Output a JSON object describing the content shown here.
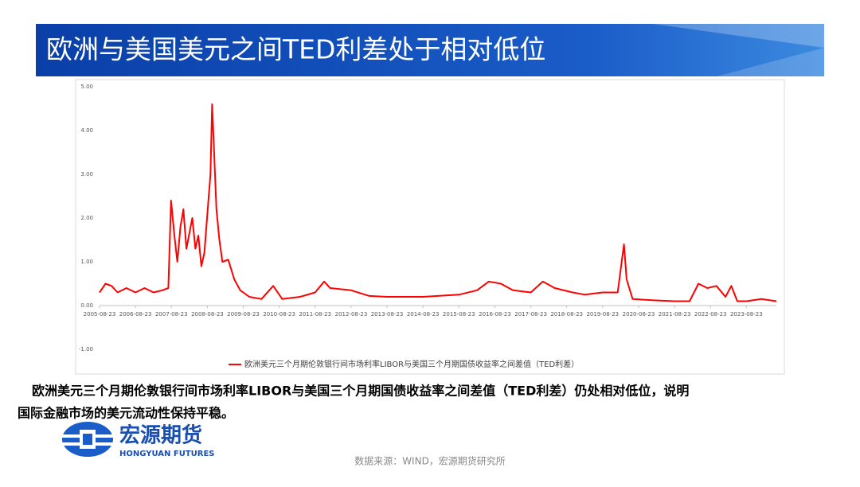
{
  "header": {
    "title": "欧洲与美国美元之间TED利差处于相对低位"
  },
  "chart_data": {
    "type": "line",
    "x": [
      "2005-08-23",
      "2005-10-23",
      "2005-12-23",
      "2006-02-23",
      "2006-05-23",
      "2006-08-23",
      "2006-11-23",
      "2007-02-23",
      "2007-05-23",
      "2007-07-23",
      "2007-08-20",
      "2007-09-23",
      "2007-10-23",
      "2007-11-23",
      "2007-12-23",
      "2008-01-23",
      "2008-03-23",
      "2008-04-23",
      "2008-05-23",
      "2008-06-23",
      "2008-07-23",
      "2008-09-23",
      "2008-10-10",
      "2008-11-23",
      "2008-12-23",
      "2009-01-23",
      "2009-03-23",
      "2009-05-23",
      "2009-07-23",
      "2009-10-23",
      "2010-02-23",
      "2010-06-23",
      "2010-09-23",
      "2011-03-23",
      "2011-08-23",
      "2011-11-23",
      "2012-01-23",
      "2012-08-23",
      "2013-02-23",
      "2013-08-23",
      "2014-08-23",
      "2015-08-23",
      "2016-02-23",
      "2016-06-23",
      "2016-10-23",
      "2017-02-23",
      "2017-08-23",
      "2017-12-23",
      "2018-04-23",
      "2018-10-23",
      "2019-02-23",
      "2019-08-23",
      "2020-01-23",
      "2020-03-27",
      "2020-04-23",
      "2020-06-23",
      "2021-01-23",
      "2021-08-23",
      "2022-01-23",
      "2022-04-23",
      "2022-07-23",
      "2022-10-23",
      "2023-01-23",
      "2023-03-23",
      "2023-05-23",
      "2023-08-23",
      "2024-01-23",
      "2024-06-23"
    ],
    "series": [
      {
        "name": "欧洲美元三个月期伦敦银行间市场利率LIBOR与美国三个月期国债收益率之间差值（TED利差）",
        "color": "#ff0000",
        "values": [
          0.3,
          0.5,
          0.45,
          0.3,
          0.4,
          0.3,
          0.4,
          0.3,
          0.35,
          0.4,
          2.4,
          1.6,
          1.0,
          1.8,
          2.2,
          1.3,
          2.0,
          1.3,
          1.6,
          0.9,
          1.2,
          3.0,
          4.6,
          2.2,
          1.5,
          1.0,
          1.05,
          0.6,
          0.35,
          0.2,
          0.15,
          0.45,
          0.15,
          0.2,
          0.3,
          0.55,
          0.4,
          0.35,
          0.22,
          0.2,
          0.2,
          0.25,
          0.35,
          0.55,
          0.5,
          0.35,
          0.3,
          0.55,
          0.4,
          0.3,
          0.25,
          0.3,
          0.3,
          1.4,
          0.6,
          0.15,
          0.12,
          0.1,
          0.1,
          0.5,
          0.4,
          0.45,
          0.2,
          0.45,
          0.1,
          0.1,
          0.15,
          0.1
        ]
      }
    ],
    "xlim": [
      "2005-08-23",
      "2024-06-23"
    ],
    "xticks": [
      "2005-08-23",
      "2006-08-23",
      "2007-08-23",
      "2008-08-23",
      "2009-08-23",
      "2010-08-23",
      "2011-08-23",
      "2012-08-23",
      "2013-08-23",
      "2014-08-23",
      "2015-08-23",
      "2016-08-23",
      "2017-08-23",
      "2018-08-23",
      "2019-08-23",
      "2020-08-23",
      "2021-08-23",
      "2022-08-23",
      "2023-08-23"
    ],
    "ylim": [
      -1,
      5
    ],
    "yticks": [
      {
        "value": 5,
        "label": "5.00"
      },
      {
        "value": 4,
        "label": "4.00"
      },
      {
        "value": 3,
        "label": "3.00"
      },
      {
        "value": 2,
        "label": "2.00"
      },
      {
        "value": 1,
        "label": "1.00"
      },
      {
        "value": 0,
        "label": "0.00"
      },
      {
        "value": -1,
        "label": "-1.00"
      }
    ],
    "grid": false
  },
  "caption": {
    "line1": "欧洲美元三个月期伦敦银行间市场利率LIBOR与美国三个月期国债收益率之间差值（TED利差）仍处相对低位，说明",
    "line2": "国际金融市场的美元流动性保持平稳。"
  },
  "logo": {
    "name": "宏源期货",
    "english": "HONGYUAN FUTURES"
  },
  "source": "数据来源：WIND，宏源期货研究所"
}
